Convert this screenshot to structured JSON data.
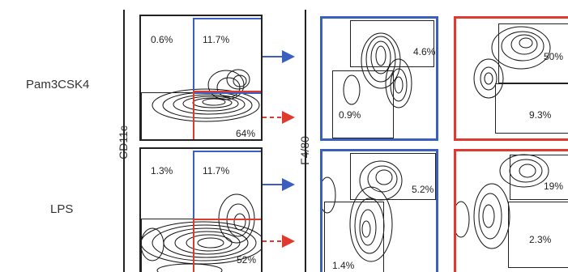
{
  "rows": [
    {
      "label": "Pam3CSK4",
      "gate_left_top": "0.6%",
      "gate_right_top": "11.7%",
      "gate_right_bottom": "64%",
      "blue_gate_upper": "4.6%",
      "blue_gate_lower": "0.9%",
      "red_gate_upper": "50%",
      "red_gate_lower": "9.3%"
    },
    {
      "label": "LPS",
      "gate_left_top": "1.3%",
      "gate_right_top": "11.7%",
      "gate_right_bottom": "52%",
      "blue_gate_upper": "5.2%",
      "blue_gate_lower": "1.4%",
      "red_gate_upper": "19%",
      "red_gate_lower": "2.3%"
    }
  ],
  "axes": {
    "first_y": "CD11c",
    "second_y": "F4/80"
  },
  "colors": {
    "blue_gate": "#3a5fbf",
    "red_gate": "#e03a2f",
    "contour": "#111111"
  }
}
